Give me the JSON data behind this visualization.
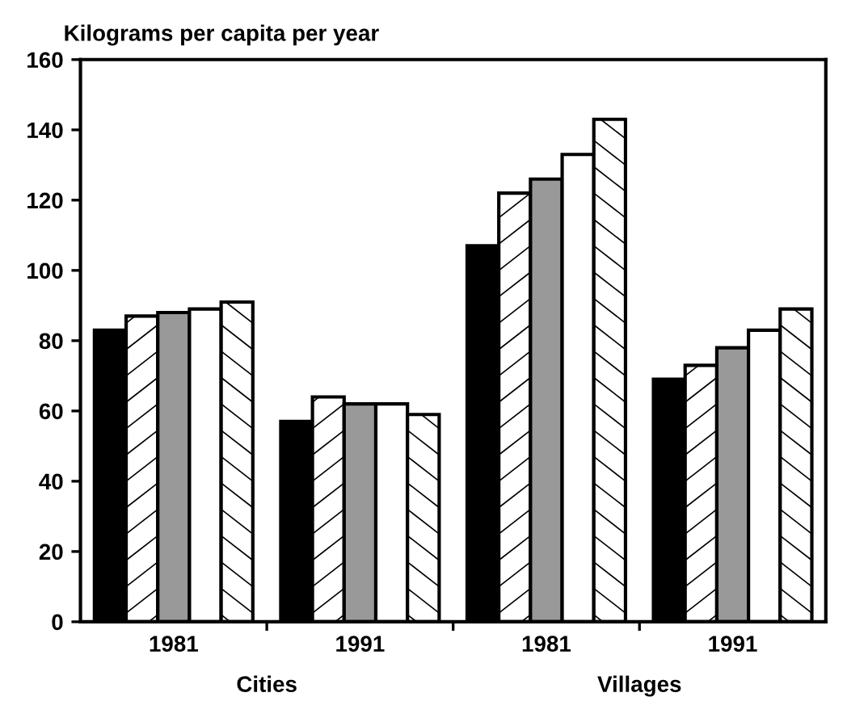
{
  "chart_data": {
    "type": "bar",
    "ylabel": "Kilograms per capita per year",
    "categories": [
      "1981",
      "1991",
      "1981",
      "1991"
    ],
    "series": [
      {
        "color": "#000000",
        "values": [
          83,
          57,
          107,
          69
        ]
      },
      {
        "color": "#ffffff",
        "values": [
          87,
          64,
          122,
          73
        ]
      },
      {
        "color": "#999999",
        "values": [
          88,
          62,
          126,
          78
        ]
      },
      {
        "color": "#ffffff",
        "values": [
          89,
          62,
          133,
          83
        ]
      },
      {
        "color": "#ffffff",
        "values": [
          91,
          59,
          143,
          89
        ]
      }
    ],
    "annotations": [
      "Cities",
      "Villages"
    ],
    "ylim": [
      0,
      160
    ],
    "yticks": [
      0,
      20,
      40,
      60,
      80,
      100,
      120,
      140,
      160
    ],
    "grid": false
  }
}
